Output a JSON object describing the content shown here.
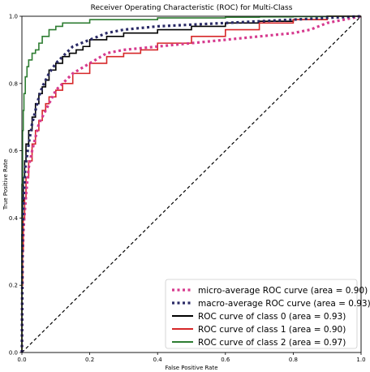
{
  "chart_data": {
    "type": "line",
    "title": "Receiver Operating Characteristic (ROC) for Multi-Class",
    "xlabel": "False Positive Rate",
    "ylabel": "True Positive Rate",
    "xlim": [
      0.0,
      1.0
    ],
    "ylim": [
      0.0,
      1.0
    ],
    "xticks": [
      "0.0",
      "0.2",
      "0.4",
      "0.6",
      "0.8",
      "1.0"
    ],
    "yticks": [
      "0.0",
      "0.2",
      "0.4",
      "0.6",
      "0.8",
      "1.0"
    ],
    "grid": false,
    "legend_position": "lower-right",
    "chance_line": {
      "x": [
        0,
        1
      ],
      "y": [
        0,
        1
      ],
      "style": "dashed",
      "color": "#000000"
    },
    "series": [
      {
        "name": "micro-average ROC curve (area = 0.90)",
        "color": "#d63a8e",
        "style": "dotted",
        "x": [
          0,
          0.002,
          0.005,
          0.01,
          0.015,
          0.02,
          0.03,
          0.04,
          0.05,
          0.06,
          0.08,
          0.1,
          0.12,
          0.15,
          0.2,
          0.25,
          0.3,
          0.4,
          0.5,
          0.6,
          0.7,
          0.8,
          0.85,
          0.9,
          0.95,
          1.0
        ],
        "y": [
          0,
          0.28,
          0.37,
          0.44,
          0.5,
          0.55,
          0.6,
          0.64,
          0.68,
          0.7,
          0.74,
          0.78,
          0.8,
          0.83,
          0.86,
          0.89,
          0.9,
          0.91,
          0.92,
          0.93,
          0.94,
          0.95,
          0.96,
          0.98,
          0.99,
          1.0
        ]
      },
      {
        "name": "macro-average ROC curve (area = 0.93)",
        "color": "#2a2a66",
        "style": "dotted",
        "x": [
          0,
          0.002,
          0.005,
          0.01,
          0.02,
          0.03,
          0.04,
          0.05,
          0.06,
          0.08,
          0.1,
          0.12,
          0.15,
          0.2,
          0.25,
          0.3,
          0.4,
          0.5,
          0.6,
          0.7,
          0.8,
          0.9,
          1.0
        ],
        "y": [
          0,
          0.35,
          0.46,
          0.55,
          0.62,
          0.68,
          0.72,
          0.76,
          0.79,
          0.83,
          0.86,
          0.88,
          0.91,
          0.93,
          0.95,
          0.96,
          0.97,
          0.975,
          0.98,
          0.985,
          0.99,
          0.995,
          1.0
        ]
      },
      {
        "name": "ROC curve of class 0 (area = 0.93)",
        "color": "#000000",
        "style": "solid",
        "x": [
          0,
          0.002,
          0.004,
          0.008,
          0.012,
          0.02,
          0.03,
          0.04,
          0.05,
          0.06,
          0.07,
          0.08,
          0.1,
          0.12,
          0.14,
          0.16,
          0.18,
          0.2,
          0.25,
          0.3,
          0.4,
          0.5,
          0.6,
          0.7,
          0.8,
          0.9,
          1.0
        ],
        "y": [
          0,
          0.35,
          0.45,
          0.52,
          0.57,
          0.62,
          0.66,
          0.7,
          0.74,
          0.77,
          0.79,
          0.81,
          0.84,
          0.86,
          0.88,
          0.89,
          0.9,
          0.91,
          0.93,
          0.94,
          0.95,
          0.96,
          0.97,
          0.98,
          0.985,
          0.99,
          1.0
        ]
      },
      {
        "name": "ROC curve of class 1 (area = 0.90)",
        "color": "#d62728",
        "style": "solid",
        "x": [
          0,
          0.002,
          0.004,
          0.008,
          0.012,
          0.02,
          0.03,
          0.04,
          0.05,
          0.06,
          0.07,
          0.08,
          0.1,
          0.12,
          0.15,
          0.2,
          0.25,
          0.3,
          0.35,
          0.4,
          0.5,
          0.6,
          0.7,
          0.8,
          0.9,
          1.0
        ],
        "y": [
          0,
          0.2,
          0.3,
          0.4,
          0.46,
          0.52,
          0.57,
          0.62,
          0.66,
          0.69,
          0.72,
          0.74,
          0.76,
          0.78,
          0.8,
          0.83,
          0.86,
          0.88,
          0.89,
          0.9,
          0.92,
          0.94,
          0.96,
          0.98,
          0.99,
          1.0
        ]
      },
      {
        "name": "ROC curve of class 2 (area = 0.97)",
        "color": "#2e7d32",
        "style": "solid",
        "x": [
          0,
          0.002,
          0.004,
          0.006,
          0.01,
          0.015,
          0.02,
          0.03,
          0.04,
          0.05,
          0.06,
          0.08,
          0.1,
          0.12,
          0.15,
          0.2,
          0.25,
          0.3,
          0.4,
          0.5,
          0.6,
          0.7,
          0.8,
          0.9,
          1.0
        ],
        "y": [
          0,
          0.5,
          0.66,
          0.72,
          0.77,
          0.82,
          0.85,
          0.87,
          0.89,
          0.9,
          0.92,
          0.94,
          0.96,
          0.97,
          0.98,
          0.98,
          0.99,
          0.99,
          0.99,
          0.995,
          0.995,
          0.997,
          0.998,
          0.999,
          1.0
        ]
      }
    ]
  }
}
